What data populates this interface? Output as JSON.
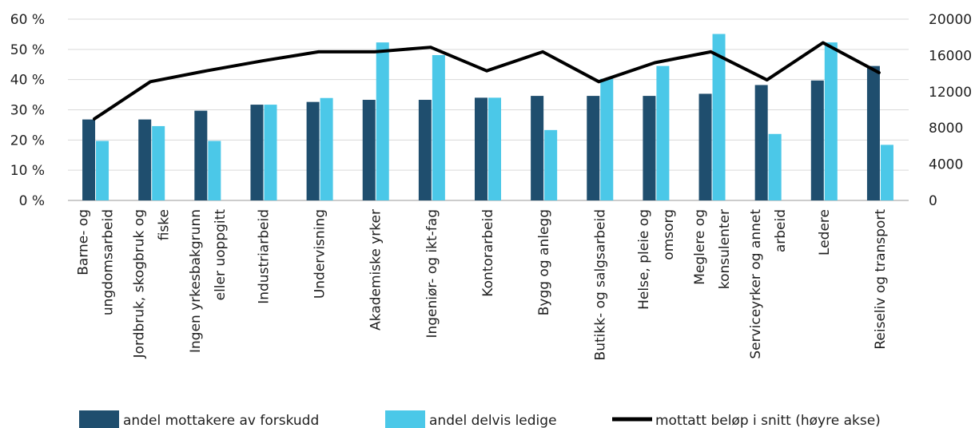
{
  "chart_data": {
    "type": "bar",
    "categories": [
      [
        "Barne- og",
        "ungdomsarbeid"
      ],
      [
        "Jordbruk, skogbruk og",
        "fiske"
      ],
      [
        "Ingen yrkesbakgrunn",
        "eller uoppgitt"
      ],
      [
        "Industriarbeid"
      ],
      [
        "Undervisning"
      ],
      [
        "Akademiske yrker"
      ],
      [
        "Ingeniør- og ikt-fag"
      ],
      [
        "Kontorarbeid"
      ],
      [
        "Bygg og anlegg"
      ],
      [
        "Butikk- og salgsarbeid"
      ],
      [
        "Helse, pleie og",
        "omsorg"
      ],
      [
        "Meglere og",
        "konsulenter"
      ],
      [
        "Serviceyrker og annet",
        "arbeid"
      ],
      [
        "Ledere"
      ],
      [
        "Reiseliv og transport"
      ]
    ],
    "series": [
      {
        "name": "andel mottakere av forskudd",
        "type": "bar",
        "axis": "left",
        "color": "#1f4e6e",
        "values": [
          26.8,
          26.8,
          29.7,
          31.7,
          32.6,
          33.3,
          33.3,
          34.0,
          34.6,
          34.6,
          34.6,
          35.3,
          38.2,
          39.7,
          44.5
        ]
      },
      {
        "name": "andel delvis ledige",
        "type": "bar",
        "axis": "left",
        "color": "#4bc8e8",
        "values": [
          19.7,
          24.6,
          19.7,
          31.7,
          33.9,
          52.3,
          48.1,
          34.0,
          23.3,
          40.3,
          44.5,
          55.1,
          22.0,
          52.3,
          18.4
        ]
      },
      {
        "name": "mottatt beløp i snitt (høyre akse)",
        "type": "line",
        "axis": "right",
        "color": "#000000",
        "values": [
          9000,
          13100,
          14300,
          15400,
          16400,
          16400,
          16900,
          14300,
          16400,
          13100,
          15200,
          16400,
          13300,
          17400,
          14100
        ]
      }
    ],
    "y_left": {
      "ylim": [
        0,
        60
      ],
      "ticks": [
        "0 %",
        "10 %",
        "20 %",
        "30 %",
        "40 %",
        "50 %",
        "60 %"
      ]
    },
    "y_right": {
      "ylim": [
        0,
        20000
      ],
      "ticks": [
        "0",
        "4000",
        "8000",
        "12000",
        "16000",
        "20000"
      ]
    },
    "grid": true,
    "legend_position": "bottom"
  }
}
